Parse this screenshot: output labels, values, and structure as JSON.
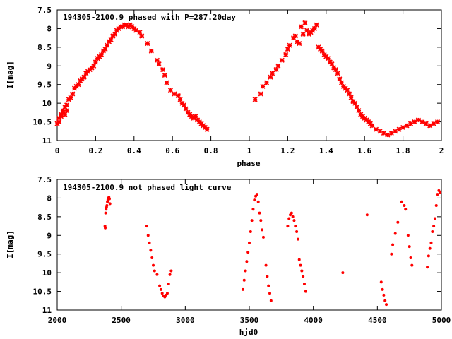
{
  "chart_data": [
    {
      "type": "scatter",
      "title": "194305-2100.9 phased with P=287.20day",
      "xlabel": "phase",
      "ylabel": "I[mag]",
      "xlim": [
        0,
        2
      ],
      "ylim": [
        11,
        7.5
      ],
      "y_inverted": true,
      "grid": false,
      "x_ticks": [
        "0",
        "0.2",
        "0.4",
        "0.6",
        "0.8",
        "1",
        "1.2",
        "1.4",
        "1.6",
        "1.8",
        "2"
      ],
      "y_ticks": [
        "7.5",
        "8",
        "8.5",
        "9",
        "9.5",
        "10",
        "10.5",
        "11"
      ],
      "marker_color": "#ff0000",
      "marker": "star",
      "points": [
        [
          0.0,
          10.55
        ],
        [
          0.01,
          10.5
        ],
        [
          0.01,
          10.4
        ],
        [
          0.02,
          10.35
        ],
        [
          0.02,
          10.3
        ],
        [
          0.03,
          10.25
        ],
        [
          0.03,
          10.2
        ],
        [
          0.04,
          10.1
        ],
        [
          0.04,
          10.3
        ],
        [
          0.05,
          10.05
        ],
        [
          0.05,
          10.2
        ],
        [
          0.06,
          9.9
        ],
        [
          0.07,
          9.85
        ],
        [
          0.08,
          9.75
        ],
        [
          0.09,
          9.6
        ],
        [
          0.1,
          9.55
        ],
        [
          0.11,
          9.5
        ],
        [
          0.12,
          9.4
        ],
        [
          0.13,
          9.35
        ],
        [
          0.14,
          9.3
        ],
        [
          0.15,
          9.2
        ],
        [
          0.16,
          9.15
        ],
        [
          0.17,
          9.1
        ],
        [
          0.18,
          9.05
        ],
        [
          0.19,
          9.0
        ],
        [
          0.2,
          8.9
        ],
        [
          0.21,
          8.8
        ],
        [
          0.22,
          8.75
        ],
        [
          0.23,
          8.7
        ],
        [
          0.24,
          8.6
        ],
        [
          0.25,
          8.55
        ],
        [
          0.26,
          8.45
        ],
        [
          0.27,
          8.35
        ],
        [
          0.28,
          8.3
        ],
        [
          0.29,
          8.2
        ],
        [
          0.3,
          8.15
        ],
        [
          0.31,
          8.05
        ],
        [
          0.32,
          8.0
        ],
        [
          0.33,
          7.95
        ],
        [
          0.34,
          7.95
        ],
        [
          0.35,
          7.9
        ],
        [
          0.36,
          7.9
        ],
        [
          0.37,
          7.95
        ],
        [
          0.38,
          7.9
        ],
        [
          0.39,
          7.95
        ],
        [
          0.4,
          8.0
        ],
        [
          0.41,
          8.05
        ],
        [
          0.43,
          8.1
        ],
        [
          0.44,
          8.2
        ],
        [
          0.47,
          8.4
        ],
        [
          0.49,
          8.6
        ],
        [
          0.52,
          8.85
        ],
        [
          0.53,
          8.95
        ],
        [
          0.55,
          9.1
        ],
        [
          0.56,
          9.25
        ],
        [
          0.57,
          9.45
        ],
        [
          0.59,
          9.65
        ],
        [
          0.61,
          9.75
        ],
        [
          0.63,
          9.8
        ],
        [
          0.64,
          9.9
        ],
        [
          0.65,
          10.0
        ],
        [
          0.66,
          10.05
        ],
        [
          0.67,
          10.15
        ],
        [
          0.68,
          10.25
        ],
        [
          0.69,
          10.3
        ],
        [
          0.7,
          10.35
        ],
        [
          0.71,
          10.4
        ],
        [
          0.72,
          10.35
        ],
        [
          0.73,
          10.45
        ],
        [
          0.74,
          10.5
        ],
        [
          0.75,
          10.55
        ],
        [
          0.76,
          10.6
        ],
        [
          0.77,
          10.65
        ],
        [
          0.78,
          10.7
        ],
        [
          1.03,
          9.9
        ],
        [
          1.06,
          9.75
        ],
        [
          1.07,
          9.55
        ],
        [
          1.09,
          9.45
        ],
        [
          1.11,
          9.3
        ],
        [
          1.12,
          9.2
        ],
        [
          1.14,
          9.1
        ],
        [
          1.15,
          9.0
        ],
        [
          1.17,
          8.85
        ],
        [
          1.19,
          8.7
        ],
        [
          1.2,
          8.55
        ],
        [
          1.21,
          8.45
        ],
        [
          1.23,
          8.25
        ],
        [
          1.24,
          8.2
        ],
        [
          1.25,
          8.35
        ],
        [
          1.26,
          8.4
        ],
        [
          1.27,
          7.95
        ],
        [
          1.28,
          8.15
        ],
        [
          1.29,
          7.85
        ],
        [
          1.3,
          8.05
        ],
        [
          1.31,
          8.15
        ],
        [
          1.32,
          8.1
        ],
        [
          1.33,
          8.05
        ],
        [
          1.34,
          8.0
        ],
        [
          1.35,
          7.9
        ],
        [
          1.36,
          8.5
        ],
        [
          1.37,
          8.55
        ],
        [
          1.38,
          8.6
        ],
        [
          1.39,
          8.7
        ],
        [
          1.4,
          8.75
        ],
        [
          1.41,
          8.8
        ],
        [
          1.42,
          8.9
        ],
        [
          1.43,
          8.95
        ],
        [
          1.44,
          9.05
        ],
        [
          1.45,
          9.1
        ],
        [
          1.46,
          9.2
        ],
        [
          1.47,
          9.35
        ],
        [
          1.48,
          9.45
        ],
        [
          1.49,
          9.55
        ],
        [
          1.5,
          9.6
        ],
        [
          1.51,
          9.65
        ],
        [
          1.52,
          9.75
        ],
        [
          1.53,
          9.85
        ],
        [
          1.54,
          9.95
        ],
        [
          1.55,
          10.0
        ],
        [
          1.56,
          10.1
        ],
        [
          1.57,
          10.2
        ],
        [
          1.58,
          10.3
        ],
        [
          1.59,
          10.35
        ],
        [
          1.6,
          10.4
        ],
        [
          1.61,
          10.45
        ],
        [
          1.62,
          10.5
        ],
        [
          1.63,
          10.55
        ],
        [
          1.64,
          10.6
        ],
        [
          1.66,
          10.7
        ],
        [
          1.68,
          10.75
        ],
        [
          1.7,
          10.8
        ],
        [
          1.72,
          10.85
        ],
        [
          1.74,
          10.8
        ],
        [
          1.76,
          10.75
        ],
        [
          1.78,
          10.7
        ],
        [
          1.8,
          10.65
        ],
        [
          1.82,
          10.6
        ],
        [
          1.84,
          10.55
        ],
        [
          1.86,
          10.5
        ],
        [
          1.88,
          10.45
        ],
        [
          1.9,
          10.5
        ],
        [
          1.92,
          10.55
        ],
        [
          1.94,
          10.6
        ],
        [
          1.96,
          10.55
        ],
        [
          1.98,
          10.5
        ]
      ]
    },
    {
      "type": "scatter",
      "title": "194305-2100.9 not phased light curve",
      "xlabel": "hjd0",
      "ylabel": "I[mag]",
      "xlim": [
        2000,
        5000
      ],
      "ylim": [
        11,
        7.5
      ],
      "y_inverted": true,
      "grid": false,
      "x_ticks": [
        "2000",
        "2500",
        "3000",
        "3500",
        "4000",
        "4500",
        "5000"
      ],
      "y_ticks": [
        "7.5",
        "8",
        "8.5",
        "9",
        "9.5",
        "10",
        "10.5",
        "11"
      ],
      "marker_color": "#ff0000",
      "marker": "dot",
      "points": [
        [
          2373,
          8.75
        ],
        [
          2375,
          8.8
        ],
        [
          2378,
          8.4
        ],
        [
          2382,
          8.3
        ],
        [
          2385,
          8.25
        ],
        [
          2388,
          8.2
        ],
        [
          2392,
          8.1
        ],
        [
          2396,
          8.05
        ],
        [
          2400,
          8.0
        ],
        [
          2404,
          7.98
        ],
        [
          2408,
          8.02
        ],
        [
          2412,
          8.15
        ],
        [
          2700,
          8.75
        ],
        [
          2710,
          9.0
        ],
        [
          2720,
          9.2
        ],
        [
          2730,
          9.4
        ],
        [
          2740,
          9.6
        ],
        [
          2750,
          9.8
        ],
        [
          2760,
          9.95
        ],
        [
          2780,
          10.05
        ],
        [
          2800,
          10.35
        ],
        [
          2810,
          10.45
        ],
        [
          2820,
          10.55
        ],
        [
          2830,
          10.62
        ],
        [
          2840,
          10.65
        ],
        [
          2850,
          10.6
        ],
        [
          2860,
          10.55
        ],
        [
          2870,
          10.3
        ],
        [
          2880,
          10.05
        ],
        [
          2890,
          9.95
        ],
        [
          3450,
          10.45
        ],
        [
          3460,
          10.2
        ],
        [
          3470,
          9.95
        ],
        [
          3480,
          9.7
        ],
        [
          3490,
          9.45
        ],
        [
          3500,
          9.2
        ],
        [
          3510,
          8.9
        ],
        [
          3520,
          8.6
        ],
        [
          3530,
          8.3
        ],
        [
          3540,
          8.05
        ],
        [
          3550,
          7.95
        ],
        [
          3560,
          7.9
        ],
        [
          3570,
          8.1
        ],
        [
          3580,
          8.4
        ],
        [
          3590,
          8.6
        ],
        [
          3600,
          8.85
        ],
        [
          3610,
          9.05
        ],
        [
          3630,
          9.8
        ],
        [
          3640,
          10.1
        ],
        [
          3650,
          10.35
        ],
        [
          3660,
          10.55
        ],
        [
          3670,
          10.75
        ],
        [
          3800,
          8.75
        ],
        [
          3810,
          8.55
        ],
        [
          3820,
          8.45
        ],
        [
          3830,
          8.4
        ],
        [
          3840,
          8.5
        ],
        [
          3850,
          8.6
        ],
        [
          3860,
          8.75
        ],
        [
          3870,
          8.9
        ],
        [
          3880,
          9.1
        ],
        [
          3890,
          9.65
        ],
        [
          3900,
          9.8
        ],
        [
          3910,
          9.95
        ],
        [
          3920,
          10.1
        ],
        [
          3930,
          10.3
        ],
        [
          3940,
          10.5
        ],
        [
          4230,
          10.0
        ],
        [
          4420,
          8.45
        ],
        [
          4530,
          10.25
        ],
        [
          4540,
          10.45
        ],
        [
          4550,
          10.6
        ],
        [
          4560,
          10.75
        ],
        [
          4570,
          10.85
        ],
        [
          4610,
          9.5
        ],
        [
          4620,
          9.25
        ],
        [
          4640,
          8.95
        ],
        [
          4660,
          8.65
        ],
        [
          4690,
          8.1
        ],
        [
          4710,
          8.2
        ],
        [
          4720,
          8.3
        ],
        [
          4740,
          9.0
        ],
        [
          4750,
          9.3
        ],
        [
          4760,
          9.6
        ],
        [
          4770,
          9.8
        ],
        [
          4890,
          9.85
        ],
        [
          4900,
          9.55
        ],
        [
          4910,
          9.35
        ],
        [
          4920,
          9.2
        ],
        [
          4930,
          8.9
        ],
        [
          4940,
          8.75
        ],
        [
          4950,
          8.55
        ],
        [
          4960,
          8.2
        ],
        [
          4970,
          7.9
        ],
        [
          4980,
          7.8
        ],
        [
          4990,
          7.85
        ]
      ]
    }
  ]
}
